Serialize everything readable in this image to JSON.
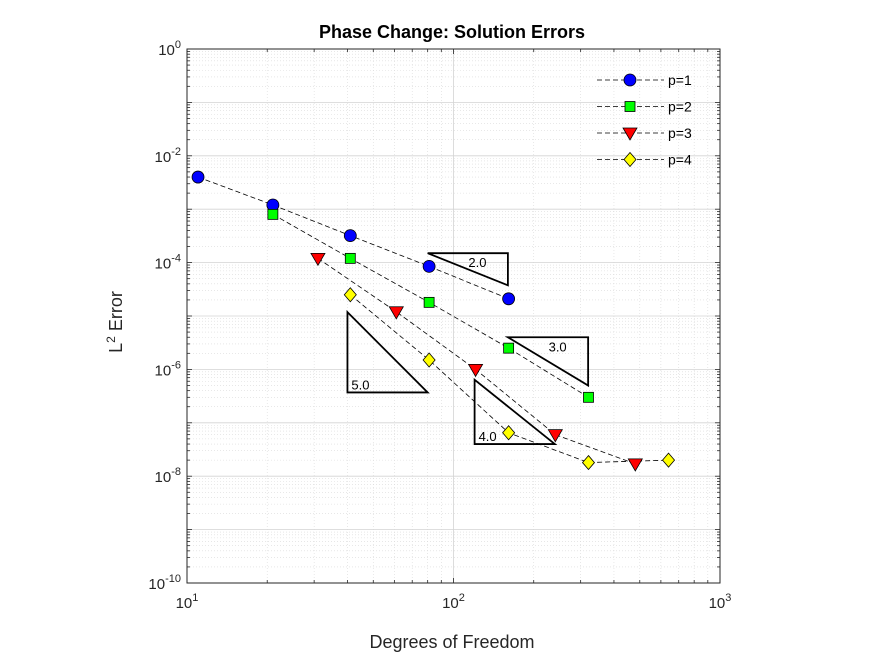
{
  "chart_data": {
    "type": "scatter",
    "title": "Phase Change: Solution Errors",
    "xlabel": "Degrees of Freedom",
    "ylabel": {
      "base": "L",
      "sup": "2",
      "rest": " Error"
    },
    "x_scale": "log",
    "y_scale": "log",
    "xlim": [
      10,
      1000
    ],
    "ylim": [
      1e-10,
      1
    ],
    "grid": true,
    "minor_grid": true,
    "legend_location": "top-right",
    "x_ticks": [
      {
        "base": "10",
        "exp": "1",
        "value": 10
      },
      {
        "base": "10",
        "exp": "2",
        "value": 100
      },
      {
        "base": "10",
        "exp": "3",
        "value": 1000
      }
    ],
    "y_ticks": [
      {
        "base": "10",
        "exp": "0",
        "value": 1
      },
      {
        "base": "10",
        "exp": "-2",
        "value": 0.01
      },
      {
        "base": "10",
        "exp": "-4",
        "value": 0.0001
      },
      {
        "base": "10",
        "exp": "-6",
        "value": 1e-06
      },
      {
        "base": "10",
        "exp": "-8",
        "value": 1e-08
      },
      {
        "base": "10",
        "exp": "-10",
        "value": 1e-10
      }
    ],
    "series": [
      {
        "name": "p=1",
        "marker": "circle",
        "color": "#0000ff",
        "x": [
          11,
          21,
          41,
          81,
          161
        ],
        "y": [
          0.004,
          0.0012,
          0.00032,
          8.5e-05,
          2.1e-05
        ]
      },
      {
        "name": "p=2",
        "marker": "square",
        "color": "#00ff00",
        "x": [
          21,
          41,
          81,
          161,
          321
        ],
        "y": [
          0.0008,
          0.00012,
          1.8e-05,
          2.5e-06,
          3e-07
        ]
      },
      {
        "name": "p=3",
        "marker": "triangle-down",
        "color": "#ff0000",
        "x": [
          31,
          61,
          121,
          241,
          481
        ],
        "y": [
          0.00012,
          1.2e-05,
          1e-06,
          6e-08,
          1.7e-08
        ]
      },
      {
        "name": "p=4",
        "marker": "diamond",
        "color": "#ffff00",
        "x": [
          41,
          81,
          161,
          321,
          641
        ],
        "y": [
          2.5e-05,
          1.5e-06,
          6.5e-08,
          1.8e-08,
          2e-08
        ]
      }
    ],
    "slope_triangles": [
      {
        "label": "2.0",
        "x1": 80,
        "x2": 160,
        "y_top": 0.00015,
        "y_bottom": 3.75e-05,
        "orientation": "top"
      },
      {
        "label": "3.0",
        "x1": 160,
        "x2": 320,
        "y_top": 4e-06,
        "y_bottom": 5e-07,
        "orientation": "top"
      },
      {
        "label": "5.0",
        "x1": 40,
        "x2": 80,
        "y_top": 1.18e-05,
        "y_bottom": 3.7e-07,
        "orientation": "bottom"
      },
      {
        "label": "4.0",
        "x1": 120,
        "x2": 240,
        "y_top": 6.4e-07,
        "y_bottom": 4e-08,
        "orientation": "bottom"
      }
    ]
  }
}
